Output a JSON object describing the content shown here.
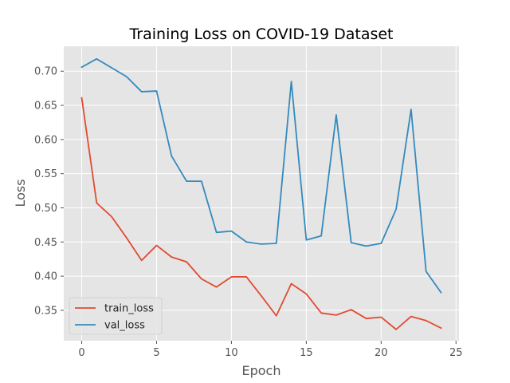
{
  "chart_data": {
    "type": "line",
    "title": "Training Loss on COVID-19 Dataset",
    "xlabel": "Epoch",
    "ylabel": "Loss",
    "xlim": [
      -1.2,
      25.2
    ],
    "ylim": [
      0.3055,
      0.7365
    ],
    "xticks": [
      0,
      5,
      10,
      15,
      20,
      25
    ],
    "yticks": [
      0.35,
      0.4,
      0.45,
      0.5,
      0.55,
      0.6,
      0.65,
      0.7
    ],
    "ytick_labels": [
      "0.35",
      "0.40",
      "0.45",
      "0.50",
      "0.55",
      "0.60",
      "0.65",
      "0.70"
    ],
    "grid": true,
    "legend_position": "lower left",
    "x": [
      0,
      1,
      2,
      3,
      4,
      5,
      6,
      7,
      8,
      9,
      10,
      11,
      12,
      13,
      14,
      15,
      16,
      17,
      18,
      19,
      20,
      21,
      22,
      23,
      24
    ],
    "series": [
      {
        "name": "train_loss",
        "color": "#E24A33",
        "values": [
          0.661,
          0.507,
          0.487,
          0.456,
          0.423,
          0.445,
          0.428,
          0.421,
          0.396,
          0.384,
          0.399,
          0.399,
          0.371,
          0.342,
          0.389,
          0.374,
          0.346,
          0.343,
          0.351,
          0.338,
          0.34,
          0.322,
          0.341,
          0.335,
          0.324
        ]
      },
      {
        "name": "val_loss",
        "color": "#348ABD",
        "values": [
          0.706,
          0.718,
          0.705,
          0.692,
          0.67,
          0.671,
          0.576,
          0.539,
          0.539,
          0.464,
          0.466,
          0.45,
          0.447,
          0.448,
          0.685,
          0.453,
          0.459,
          0.636,
          0.449,
          0.444,
          0.448,
          0.498,
          0.644,
          0.407,
          0.376
        ]
      }
    ]
  }
}
